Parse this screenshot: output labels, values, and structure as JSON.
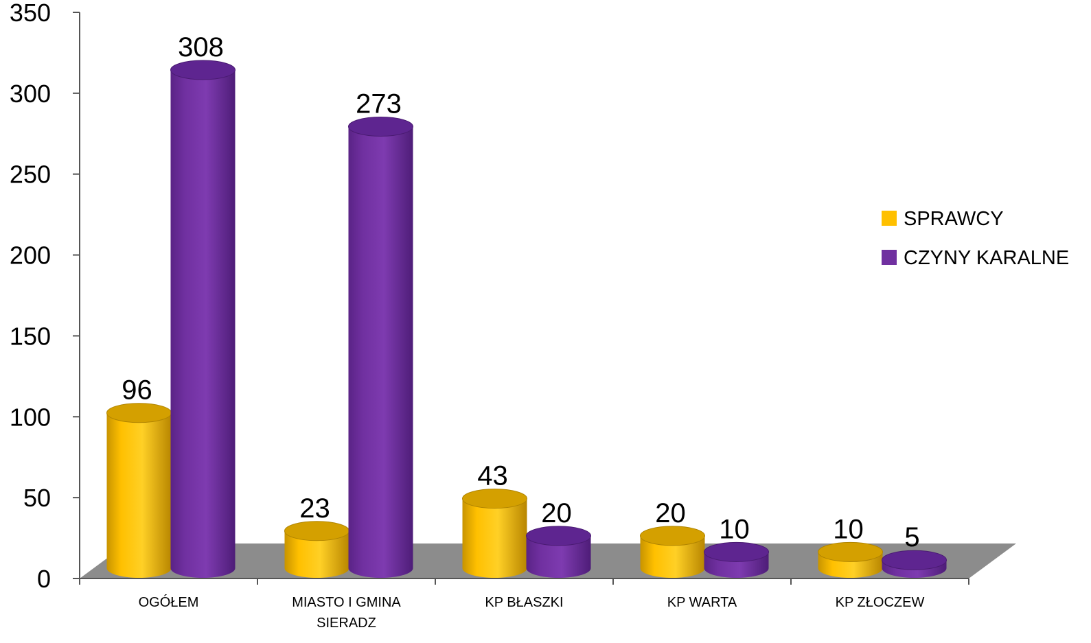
{
  "chart_data": {
    "type": "bar",
    "title": "",
    "xlabel": "",
    "ylabel": "",
    "ylim": [
      0,
      350
    ],
    "yticks": [
      0,
      50,
      100,
      150,
      200,
      250,
      300,
      350
    ],
    "categories": [
      "OGÓŁEM",
      "MIASTO I GMINA SIERADZ",
      "KP BŁASZKI",
      "KP WARTA",
      "KP ZŁOCZEW"
    ],
    "series": [
      {
        "name": "SPRAWCY",
        "values": [
          96,
          23,
          43,
          20,
          10
        ],
        "color": "#FFC000"
      },
      {
        "name": "CZYNY KARALNE",
        "values": [
          308,
          273,
          20,
          10,
          5
        ],
        "color": "#7030A0"
      }
    ],
    "legend_position": "right",
    "grid": false,
    "style": "3d-cylinder"
  }
}
